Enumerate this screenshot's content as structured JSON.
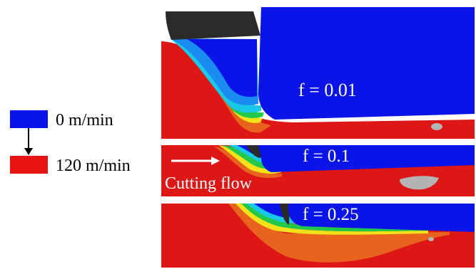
{
  "legend": {
    "low_label": "0 m/min",
    "high_label": "120 m/min",
    "low_color": "#0a14e6",
    "high_color": "#e61414"
  },
  "panels": [
    {
      "label": "f = 0.01"
    },
    {
      "label": "f = 0.1"
    },
    {
      "label": "f = 0.25"
    }
  ],
  "annotation": {
    "text": "Cutting flow"
  },
  "colors": {
    "workpiece": "#dd1616",
    "tool": "#0a14e6",
    "dark_tool": "#2a2a2a",
    "grey_chip": "#b4b4b4",
    "orange": "#e8641e",
    "yellow": "#f2e21a",
    "green": "#22c84a",
    "cyan": "#19c8e6",
    "light_blue": "#1a8cf0"
  }
}
